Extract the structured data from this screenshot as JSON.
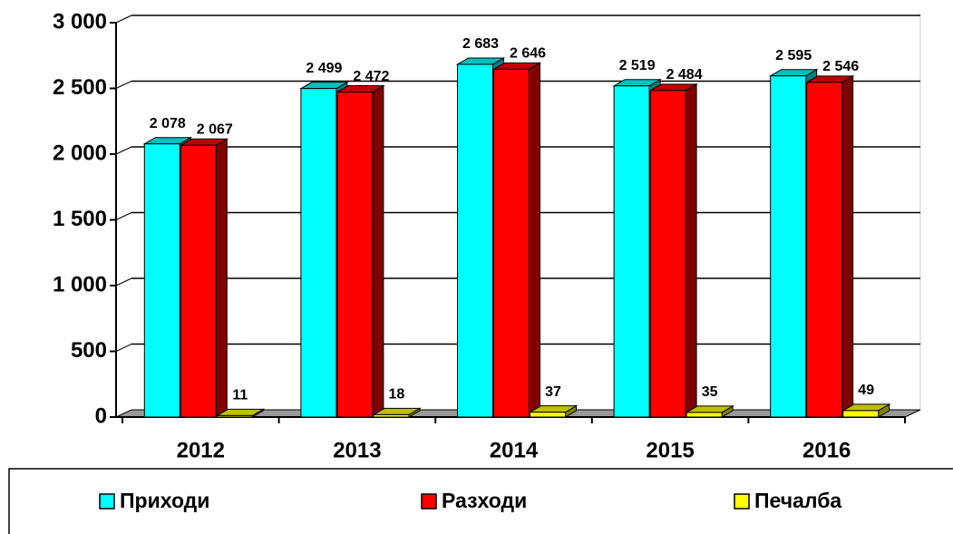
{
  "chart_data": {
    "type": "bar3d",
    "categories": [
      "2012",
      "2013",
      "2014",
      "2015",
      "2016"
    ],
    "series": [
      {
        "name": "Приходи",
        "color": "#00ffff",
        "values": [
          2078,
          2499,
          2683,
          2519,
          2595
        ],
        "value_labels": [
          "2 078",
          "2 499",
          "2 683",
          "2 519",
          "2 595"
        ]
      },
      {
        "name": "Разходи",
        "color": "#ff0000",
        "values": [
          2067,
          2472,
          2646,
          2484,
          2546
        ],
        "value_labels": [
          "2 067",
          "2 472",
          "2 646",
          "2 484",
          "2 546"
        ]
      },
      {
        "name": "Печалба",
        "color": "#ffff00",
        "values": [
          11,
          18,
          37,
          35,
          49
        ]
      }
    ],
    "ylim": [
      0,
      3000
    ],
    "yticks": [
      0,
      500,
      {
        "value": 1000,
        "label": "1 000"
      },
      {
        "value": 1500,
        "label": "1 500"
      },
      {
        "value": 2000,
        "label": "2 000"
      },
      {
        "value": 2500,
        "label": "2 500"
      },
      {
        "value": 3000,
        "label": "3 000"
      }
    ],
    "grid": true
  }
}
